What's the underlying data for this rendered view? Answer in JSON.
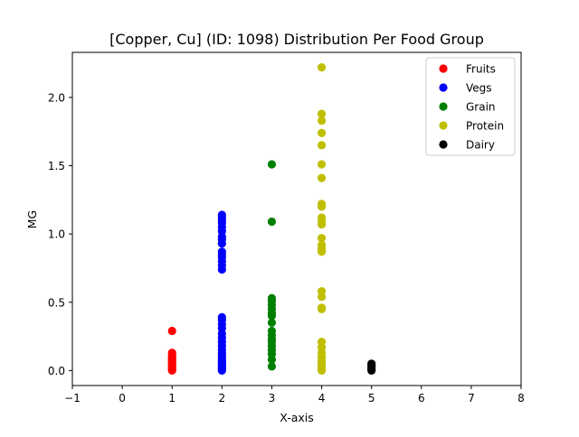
{
  "chart_data": {
    "type": "scatter",
    "title": "[Copper, Cu] (ID: 1098) Distribution Per Food Group",
    "xlabel": "X-axis",
    "ylabel": "MG",
    "xlim": [
      -1,
      8
    ],
    "ylim": [
      -0.11,
      2.33
    ],
    "xticks": [
      -1,
      0,
      1,
      2,
      3,
      4,
      5,
      6,
      7,
      8
    ],
    "yticks": [
      0.0,
      0.5,
      1.0,
      1.5,
      2.0
    ],
    "xtick_labels": [
      "−1",
      "0",
      "1",
      "2",
      "3",
      "4",
      "5",
      "6",
      "7",
      "8"
    ],
    "ytick_labels": [
      "0.0",
      "0.5",
      "1.0",
      "1.5",
      "2.0"
    ],
    "grid": false,
    "legend_position": "top-right",
    "series": [
      {
        "name": "Fruits",
        "color": "#ff0000",
        "x": 1,
        "values": [
          0.29,
          0.13,
          0.11,
          0.1,
          0.09,
          0.08,
          0.07,
          0.06,
          0.05,
          0.04,
          0.03,
          0.02,
          0.01,
          0.005,
          0.0
        ]
      },
      {
        "name": "Vegs",
        "color": "#0000ff",
        "x": 2,
        "values": [
          1.14,
          1.12,
          1.1,
          1.08,
          1.05,
          1.02,
          0.98,
          0.96,
          0.93,
          0.87,
          0.85,
          0.83,
          0.8,
          0.77,
          0.74,
          0.39,
          0.37,
          0.34,
          0.31,
          0.27,
          0.24,
          0.21,
          0.18,
          0.15,
          0.13,
          0.11,
          0.09,
          0.07,
          0.06,
          0.05,
          0.04,
          0.03,
          0.02,
          0.01,
          0.0
        ]
      },
      {
        "name": "Grain",
        "color": "#008000",
        "x": 3,
        "values": [
          1.51,
          1.09,
          0.53,
          0.51,
          0.48,
          0.45,
          0.42,
          0.4,
          0.35,
          0.29,
          0.26,
          0.23,
          0.21,
          0.18,
          0.15,
          0.12,
          0.08,
          0.03
        ]
      },
      {
        "name": "Protein",
        "color": "#bfbf00",
        "x": 4,
        "values": [
          2.22,
          1.88,
          1.83,
          1.74,
          1.65,
          1.51,
          1.41,
          1.22,
          1.2,
          1.12,
          1.1,
          1.07,
          0.97,
          0.92,
          0.89,
          0.87,
          0.58,
          0.54,
          0.46,
          0.45,
          0.21,
          0.17,
          0.13,
          0.1,
          0.07,
          0.05,
          0.03,
          0.02,
          0.01,
          0.0
        ]
      },
      {
        "name": "Dairy",
        "color": "#000000",
        "x": 5,
        "values": [
          0.05,
          0.04,
          0.03,
          0.02,
          0.01,
          0.0
        ]
      }
    ]
  }
}
